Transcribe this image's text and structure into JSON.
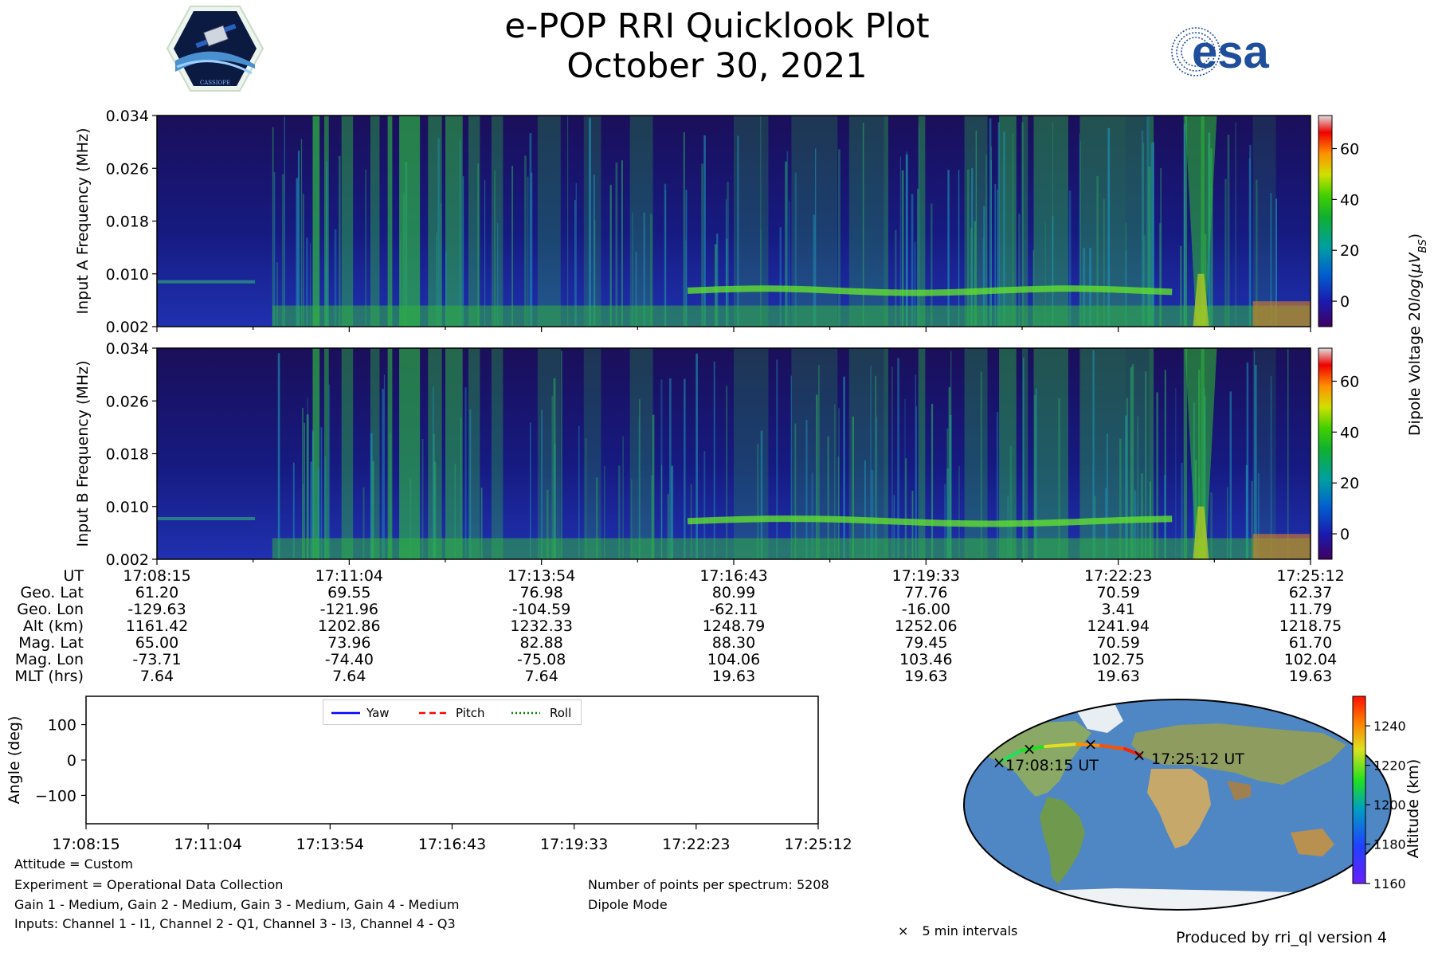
{
  "header": {
    "title": "e-POP RRI Quicklook Plot",
    "date": "October 30, 2021",
    "logo_left": "CASSIOPE",
    "logo_right": "esa"
  },
  "chart_data": [
    {
      "type": "heatmap",
      "name": "input-a-spectrogram",
      "ylabel": "Input A Frequency (MHz)",
      "yticks": [
        "0.002",
        "0.010",
        "0.018",
        "0.026",
        "0.034"
      ],
      "ylim": [
        0.002,
        0.034
      ]
    },
    {
      "type": "heatmap",
      "name": "input-b-spectrogram",
      "ylabel": "Input B Frequency (MHz)",
      "yticks": [
        "0.002",
        "0.010",
        "0.018",
        "0.026",
        "0.034"
      ],
      "ylim": [
        0.002,
        0.034
      ]
    },
    {
      "type": "colorbar",
      "label": "Dipole Voltage 20log(μVBS)",
      "ticks": [
        "60",
        "40",
        "20",
        "0"
      ],
      "range": [
        -10,
        73
      ]
    },
    {
      "type": "line",
      "name": "attitude",
      "ylabel": "Angle (deg)",
      "yticks": [
        "100",
        "0",
        "−100"
      ],
      "ylim": [
        -180,
        180
      ],
      "xticks": [
        "17:08:15",
        "17:11:04",
        "17:13:54",
        "17:16:43",
        "17:19:33",
        "17:22:23",
        "17:25:12"
      ],
      "legend": [
        "Yaw",
        "Pitch",
        "Roll"
      ],
      "legend_position": "top-center",
      "series_colors": [
        "#0000ff",
        "#ff0000",
        "#008000"
      ]
    },
    {
      "type": "map",
      "name": "orbit-track",
      "start_label": "17:08:15 UT",
      "end_label": "17:25:12 UT",
      "colorbar_label": "Altitude (km)",
      "colorbar_ticks": [
        "1240",
        "1220",
        "1200",
        "1180",
        "1160"
      ],
      "colorbar_range": [
        1160,
        1255
      ],
      "marker_legend": "5 min intervals"
    }
  ],
  "ephemeris": {
    "labels": [
      "UT",
      "Geo. Lat",
      "Geo. Lon",
      "Alt (km)",
      "Mag. Lat",
      "Mag. Lon",
      "MLT (hrs)"
    ],
    "columns": [
      [
        "17:08:15",
        "61.20",
        "-129.63",
        "1161.42",
        "65.00",
        "-73.71",
        "7.64"
      ],
      [
        "17:11:04",
        "69.55",
        "-121.96",
        "1202.86",
        "73.96",
        "-74.40",
        "7.64"
      ],
      [
        "17:13:54",
        "76.98",
        "-104.59",
        "1232.33",
        "82.88",
        "-75.08",
        "7.64"
      ],
      [
        "17:16:43",
        "80.99",
        "-62.11",
        "1248.79",
        "88.30",
        "104.06",
        "19.63"
      ],
      [
        "17:19:33",
        "77.76",
        "-16.00",
        "1252.06",
        "79.45",
        "103.46",
        "19.63"
      ],
      [
        "17:22:23",
        "70.59",
        "3.41",
        "1241.94",
        "70.59",
        "102.75",
        "19.63"
      ],
      [
        "17:25:12",
        "62.37",
        "11.79",
        "1218.75",
        "61.70",
        "102.04",
        "19.63"
      ]
    ]
  },
  "footer": {
    "attitude": "Attitude = Custom",
    "experiment": "Experiment = Operational Data Collection",
    "gains": "Gain 1 - Medium, Gain 2 - Medium, Gain 3 - Medium, Gain 4 - Medium",
    "inputs": "Inputs: Channel 1 - I1, Channel 2 - Q1, Channel 3 - I3, Channel 4 - Q3",
    "points": "Number of points per spectrum: 5208",
    "mode": "Dipole Mode",
    "produced": "Produced by rri_ql version 4"
  }
}
